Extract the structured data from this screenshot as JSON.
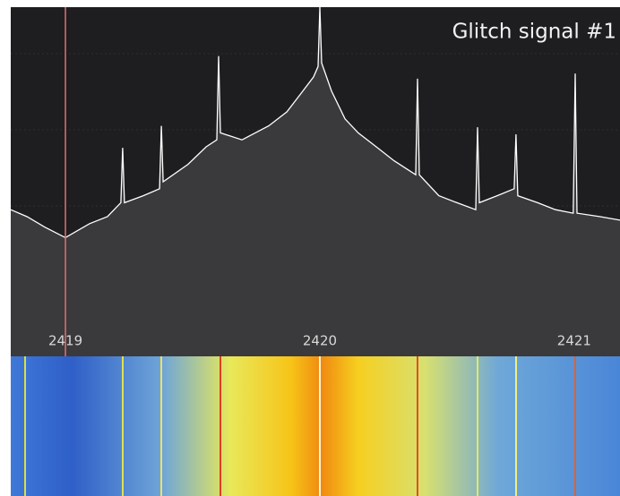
{
  "chart_data": {
    "type": "line",
    "title": "Glitch signal #1",
    "x": [
      2418.785,
      2418.849,
      2418.919,
      2419,
      2419.095,
      2419.165,
      2419.218,
      2419.225,
      2419.232,
      2419.306,
      2419.37,
      2419.377,
      2419.384,
      2419.482,
      2419.553,
      2419.595,
      2419.602,
      2419.609,
      2419.694,
      2419.799,
      2419.87,
      2419.923,
      2419.975,
      2419.993,
      2420,
      2420.007,
      2420.046,
      2420.099,
      2420.151,
      2420.222,
      2420.292,
      2420.377,
      2420.384,
      2420.391,
      2420.468,
      2420.539,
      2420.613,
      2420.62,
      2420.627,
      2420.697,
      2420.764,
      2420.771,
      2420.778,
      2420.856,
      2420.926,
      2420.996,
      2421.004,
      2421.011,
      2421.102,
      2421.18
    ],
    "series": [
      {
        "color": "#ffffff",
        "values": [
          42,
          40,
          37,
          34,
          38,
          40,
          44,
          59.7,
          44,
          46,
          48,
          66,
          50,
          55,
          60,
          62,
          86,
          64,
          62,
          66,
          70,
          75,
          80,
          83,
          100,
          84,
          76,
          68,
          64,
          60,
          56,
          52,
          79.5,
          52,
          46,
          44,
          42,
          65.6,
          44,
          46,
          48,
          63.6,
          46,
          44,
          42,
          41,
          81,
          41,
          40,
          39
        ]
      }
    ],
    "xlim": [
      2418.785,
      2421.18
    ],
    "xticks": [
      2419,
      2420,
      2421
    ],
    "ylim": [
      0,
      100
    ],
    "marker": 2419
  }
}
